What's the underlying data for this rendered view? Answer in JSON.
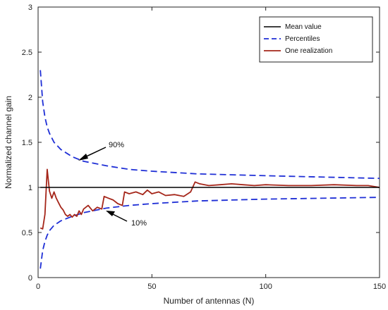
{
  "chart_data": {
    "type": "line",
    "xlabel": "Number of antennas (N)",
    "ylabel": "Normalized channel gain",
    "xlim": [
      0,
      150
    ],
    "ylim": [
      0,
      3
    ],
    "xticks": [
      "0",
      "50",
      "100",
      "150"
    ],
    "yticks": [
      "0",
      "0.5",
      "1",
      "1.5",
      "2",
      "2.5",
      "3"
    ],
    "grid": false,
    "legend": {
      "placement": "top-right",
      "entries": [
        "Mean value",
        "Percentiles",
        "One realization"
      ]
    },
    "annotations": [
      {
        "text": "90%",
        "points_to": {
          "x": 17,
          "y": 1.33
        }
      },
      {
        "text": "10%",
        "points_to": {
          "x": 30,
          "y": 0.79
        }
      }
    ],
    "colors": {
      "mean": "#000000",
      "percentiles": "#1f2fd6",
      "realization": "#a5261a"
    },
    "series": [
      {
        "name": "Mean value",
        "style": "solid",
        "x": [
          1,
          150
        ],
        "y": [
          1,
          1
        ]
      },
      {
        "name": "Percentiles",
        "style": "dashed",
        "x": [
          1,
          2,
          3,
          4,
          5,
          7,
          10,
          15,
          20,
          30,
          40,
          50,
          70,
          100,
          150
        ],
        "y": [
          2.3,
          1.95,
          1.78,
          1.67,
          1.6,
          1.5,
          1.42,
          1.34,
          1.29,
          1.24,
          1.2,
          1.18,
          1.15,
          1.13,
          1.1
        ]
      },
      {
        "name": "Percentiles",
        "style": "dashed",
        "x": [
          1,
          2,
          3,
          4,
          5,
          7,
          10,
          15,
          20,
          30,
          40,
          50,
          70,
          100,
          150
        ],
        "y": [
          0.1,
          0.3,
          0.4,
          0.47,
          0.52,
          0.58,
          0.63,
          0.68,
          0.72,
          0.77,
          0.8,
          0.82,
          0.85,
          0.87,
          0.89
        ]
      },
      {
        "name": "One realization",
        "style": "solid",
        "x": [
          1,
          2,
          3,
          4,
          5,
          6,
          7,
          8,
          9,
          10,
          11,
          12,
          13,
          14,
          15,
          16,
          17,
          18,
          19,
          20,
          22,
          24,
          26,
          28,
          29,
          31,
          33,
          35,
          37,
          38,
          40,
          43,
          46,
          48,
          50,
          53,
          56,
          60,
          64,
          67,
          69,
          71,
          75,
          80,
          85,
          90,
          95,
          100,
          110,
          120,
          130,
          140,
          145,
          150
        ],
        "y": [
          0.55,
          0.54,
          0.7,
          1.2,
          0.96,
          0.88,
          0.95,
          0.88,
          0.83,
          0.78,
          0.75,
          0.7,
          0.68,
          0.7,
          0.67,
          0.7,
          0.68,
          0.74,
          0.7,
          0.76,
          0.8,
          0.74,
          0.78,
          0.76,
          0.9,
          0.88,
          0.86,
          0.82,
          0.8,
          0.95,
          0.93,
          0.95,
          0.92,
          0.97,
          0.93,
          0.95,
          0.91,
          0.92,
          0.9,
          0.95,
          1.06,
          1.04,
          1.02,
          1.03,
          1.04,
          1.03,
          1.02,
          1.03,
          1.02,
          1.02,
          1.03,
          1.02,
          1.02,
          1.0
        ]
      }
    ]
  }
}
